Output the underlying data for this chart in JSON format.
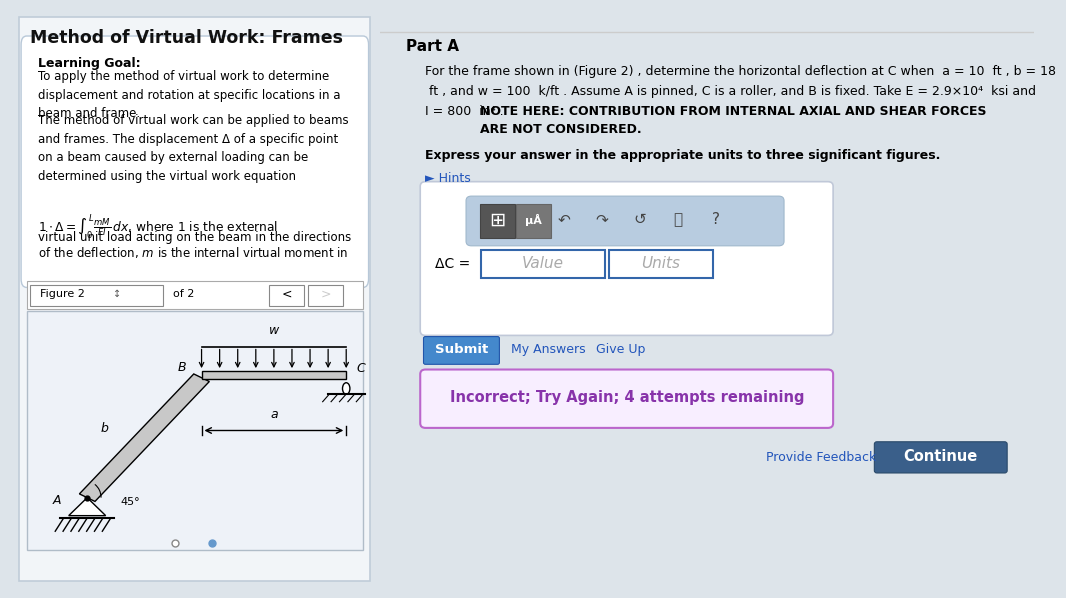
{
  "title_left": "Method of Virtual Work: Frames",
  "bg_color": "#dde4ea",
  "left_bg": "#f2f5f8",
  "left_border": "#c0ccd8",
  "goal_box_bg": "#ffffff",
  "fig_panel_bg": "#eef2f8",
  "learning_goal_title": "Learning Goal:",
  "learning_goal_text1": "To apply the method of virtual work to determine\ndisplacement and rotation at specific locations in a\nbeam and frame.",
  "learning_goal_text2": "The method of virtual work can be applied to beams\nand frames. The displacement Δ of a specific point\non a beam caused by external loading can be\ndetermined using the virtual work equation",
  "figure_label": "Figure 2",
  "of_label": "of 2",
  "part_a_title": "Part A",
  "line1": "For the frame shown in (Figure 2) , determine the horizontal deflection at C when  a = 10  ft , b = 18",
  "line2": " ft , and w = 100  k/ft . Assume A is pinned, C is a roller, and B is fixed. Take E = 2.9×10⁴  ksi and",
  "line3a": "I = 800  in⁴ . ",
  "line3b": "NOTE HERE: CONTRIBUTION FROM INTERNAL AXIAL AND SHEAR FORCES\nARE NOT CONSIDERED.",
  "express_text": "Express your answer in the appropriate units to three significant figures.",
  "hints_text": "► Hints",
  "delta_label": "ΔC =",
  "value_placeholder": "Value",
  "units_placeholder": "Units",
  "submit_text": "Submit",
  "my_answers_text": "My Answers",
  "give_up_text": "Give Up",
  "incorrect_text": "Incorrect; Try Again; 4 attempts remaining",
  "provide_feedback_text": "Provide Feedback",
  "continue_text": "Continue",
  "toolbar_bg": "#b8cce0",
  "input_box_border": "#c0c8d0",
  "submit_color": "#4488cc",
  "continue_color": "#3a5f8a",
  "incorrect_bg": "#f8eeff",
  "incorrect_border": "#bb66cc",
  "incorrect_text_color": "#8833aa",
  "link_color": "#2255bb"
}
